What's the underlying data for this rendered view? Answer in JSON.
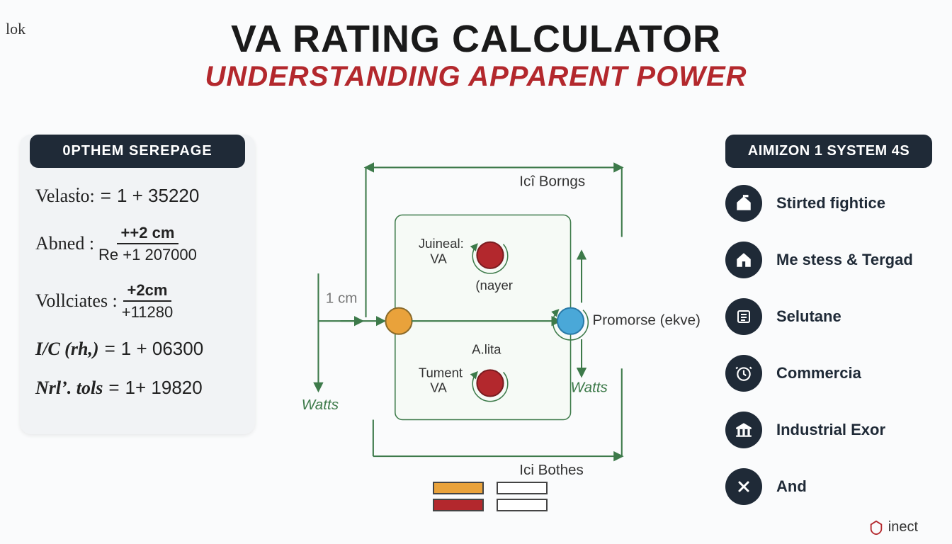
{
  "header": {
    "title": "VA RATING CALCULATOR",
    "subtitle": "UNDERSTANDING APPARENT POWER",
    "subtitle_color": "#b3282d",
    "title_color": "#1a1a1a"
  },
  "left_panel": {
    "header": "0PTHEM SEREPAGE",
    "rows": [
      {
        "label": "Velasṫo:",
        "eq": "=",
        "rhs_plain": "1 + 35220"
      },
      {
        "label": "Abned :",
        "num": "++2 cm",
        "den": "Re +1 207000"
      },
      {
        "label": "Vollciates :",
        "num": "+2cm",
        "den": "+11280"
      },
      {
        "label": "I/C  (rh,)",
        "eq": "=",
        "rhs_plain": "1 + 06300",
        "bold": true
      },
      {
        "label": "Nrl’. tols",
        "eq": "=",
        "rhs_plain": "1+ 19820",
        "bold": true
      }
    ]
  },
  "right_panel": {
    "header": "AIMIZON 1 SYSTEM 4S",
    "items": [
      {
        "name": "stirted",
        "label": "Stirted fightice",
        "icon": "home-flag"
      },
      {
        "name": "mestess",
        "label": "Me stess & Tergad",
        "icon": "home"
      },
      {
        "name": "selutane",
        "label": "Selutane",
        "icon": "list"
      },
      {
        "name": "commercia",
        "label": "Commercia",
        "icon": "clock"
      },
      {
        "name": "industrial",
        "label": "Industrial Exor",
        "icon": "bank"
      },
      {
        "name": "and",
        "label": "And",
        "icon": "x"
      }
    ]
  },
  "diagram": {
    "box_stroke": "#3d7a4a",
    "box_fill": "#f6faf6",
    "arrow_color": "#3d7a4a",
    "text_color": "#333333",
    "italic_color": "#3d7a4a",
    "node_colors": {
      "orange": "#e9a23b",
      "red": "#b3282d",
      "blue": "#4aa8d8"
    },
    "labels": {
      "scale": "1 cm",
      "watts_left": "Watts",
      "watts_right": "Watts",
      "top_arrow": "Icî Borngs",
      "bottom_arrow": "Ici Bothes",
      "result": "Promorse (ekve)",
      "n1_top": "Juineal:",
      "n1_bot": "VA",
      "n1_sub": "(nayer",
      "n2_top": "Tument",
      "n2_bot": "VA",
      "n2_mid": "A.lita"
    },
    "legend": {
      "colors": [
        "#e9a23b",
        "#ffffff",
        "#b3282d",
        "#ffffff"
      ]
    }
  },
  "decor": {
    "corner_logo": "lok",
    "footer_brand": "inect"
  }
}
